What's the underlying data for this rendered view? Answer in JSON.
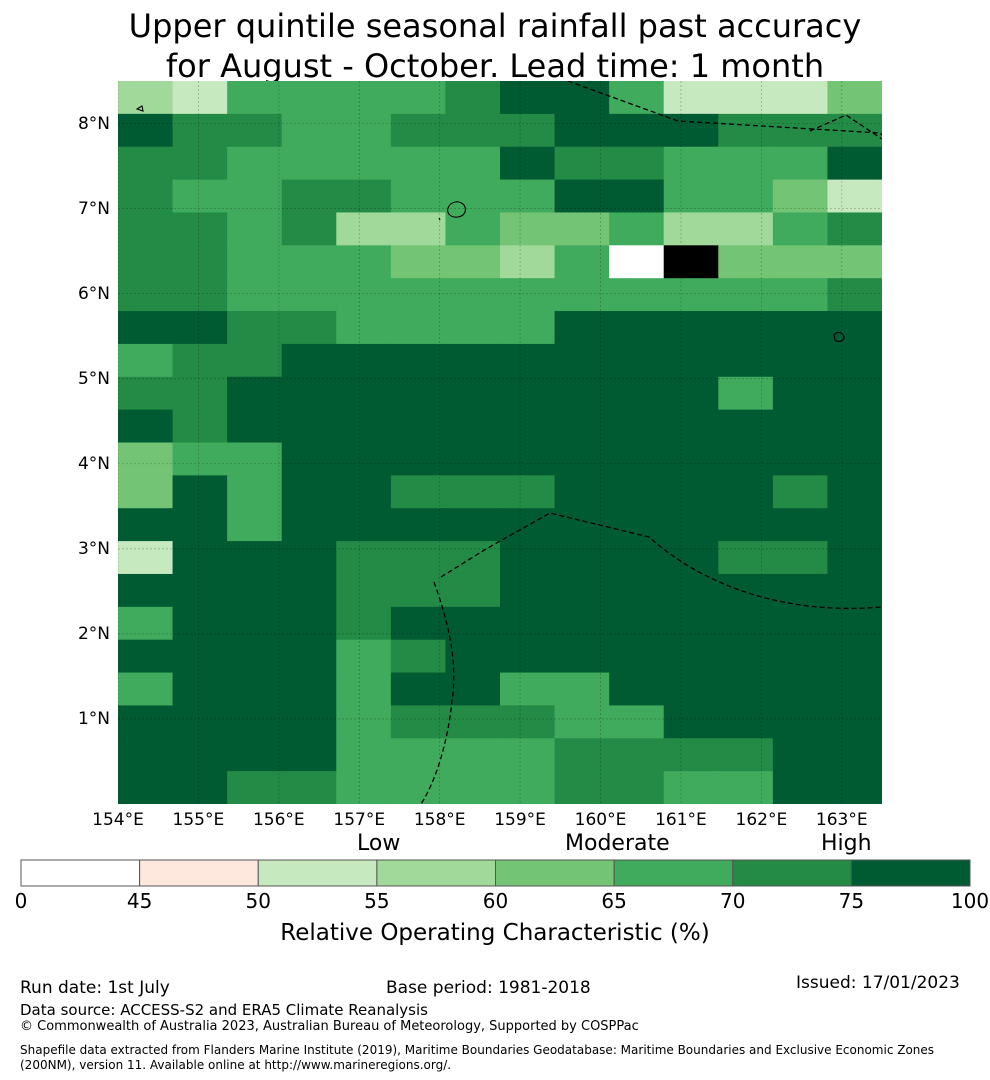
{
  "title_line1": "Upper quintile seasonal rainfall past accuracy",
  "title_line2": "for August - October. Lead time: 1 month",
  "map": {
    "lon_range": [
      154,
      163.5
    ],
    "lat_range": [
      0,
      8.5
    ],
    "lat_ticks": [
      "8°N",
      "7°N",
      "6°N",
      "5°N",
      "4°N",
      "3°N",
      "2°N",
      "1°N"
    ],
    "lon_ticks": [
      "154°E",
      "155°E",
      "156°E",
      "157°E",
      "158°E",
      "159°E",
      "160°E",
      "161°E",
      "162°E",
      "163°E"
    ],
    "grid_rows": [
      "45222210025553",
      "01122111000111",
      "11222220112220",
      "12211222002235",
      "11214423324421",
      "11222334278333",
      "11222222222221",
      "00112222000000",
      "21100000000000",
      "11000000000200",
      "01000000000000",
      "32200000000000",
      "30200111000010",
      "0020000000000",
      "50001110000110",
      "00001110000000",
      "20001000000000",
      "0000210000000",
      "20002002200000",
      "00002111220000",
      "00002222111100",
      "00112222112200"
    ]
  },
  "colorbar": {
    "category_labels": [
      "Low",
      "Moderate",
      "High"
    ],
    "ticks": [
      "0",
      "45",
      "50",
      "55",
      "60",
      "65",
      "70",
      "75",
      "100"
    ],
    "colors": [
      "#ffffff",
      "#fee8de",
      "#c7e9c0",
      "#a1d99b",
      "#74c476",
      "#41ab5d",
      "#238b45",
      "#005a32"
    ],
    "label": "Relative Operating Characteristic (%)"
  },
  "footer": {
    "run_date": "Run date: 1st July",
    "base_period": "Base period: 1981-2018",
    "issued": "Issued: 17/01/2023",
    "data_source": "Data source: ACCESS-S2 and ERA5 Climate Reanalysis",
    "copyright": "© Commonwealth of Australia 2023, Australian Bureau of Meteorology, Supported by COSPPac",
    "shapefile_line1": "Shapefile data extracted from Flanders Marine Institute (2019), Maritime Boundaries Geodatabase: Maritime Boundaries and Exclusive Economic Zones",
    "shapefile_line2": "(200NM), version 11. Available online at http://www.marineregions.org/."
  }
}
